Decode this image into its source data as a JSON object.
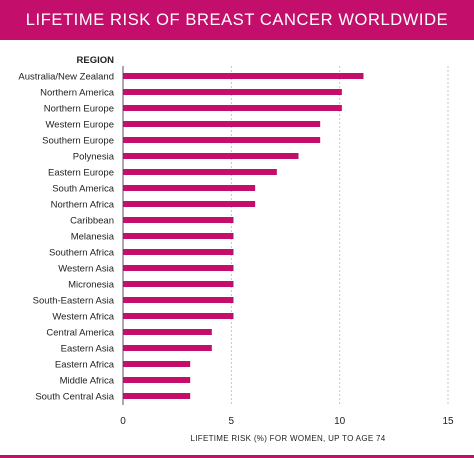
{
  "colors": {
    "accent": "#c40e6b",
    "text": "#222222",
    "grid": "#bbbbbb",
    "axis": "#555555"
  },
  "chart_data": {
    "type": "bar",
    "orientation": "horizontal",
    "title": "LIFETIME RISK OF BREAST CANCER WORLDWIDE",
    "category_header": "REGION",
    "xlabel": "LIFETIME RISK (%) FOR WOMEN, UP TO AGE 74",
    "xlim": [
      0,
      15
    ],
    "xticks": [
      0,
      5,
      10,
      15
    ],
    "grid": "vertical dashed",
    "categories": [
      "Australia/New Zealand",
      "Northern America",
      "Northern Europe",
      "Western Europe",
      "Southern Europe",
      "Polynesia",
      "Eastern Europe",
      "South America",
      "Northern Africa",
      "Caribbean",
      "Melanesia",
      "Southern Africa",
      "Western Asia",
      "Micronesia",
      "South-Eastern Asia",
      "Western Africa",
      "Central America",
      "Eastern Asia",
      "Eastern Africa",
      "Middle Africa",
      "South Central Asia"
    ],
    "values": [
      11.1,
      10.1,
      10.1,
      9.1,
      9.1,
      8.1,
      7.1,
      6.1,
      6.1,
      5.1,
      5.1,
      5.1,
      5.1,
      5.1,
      5.1,
      5.1,
      4.1,
      4.1,
      3.1,
      3.1,
      3.1
    ]
  }
}
